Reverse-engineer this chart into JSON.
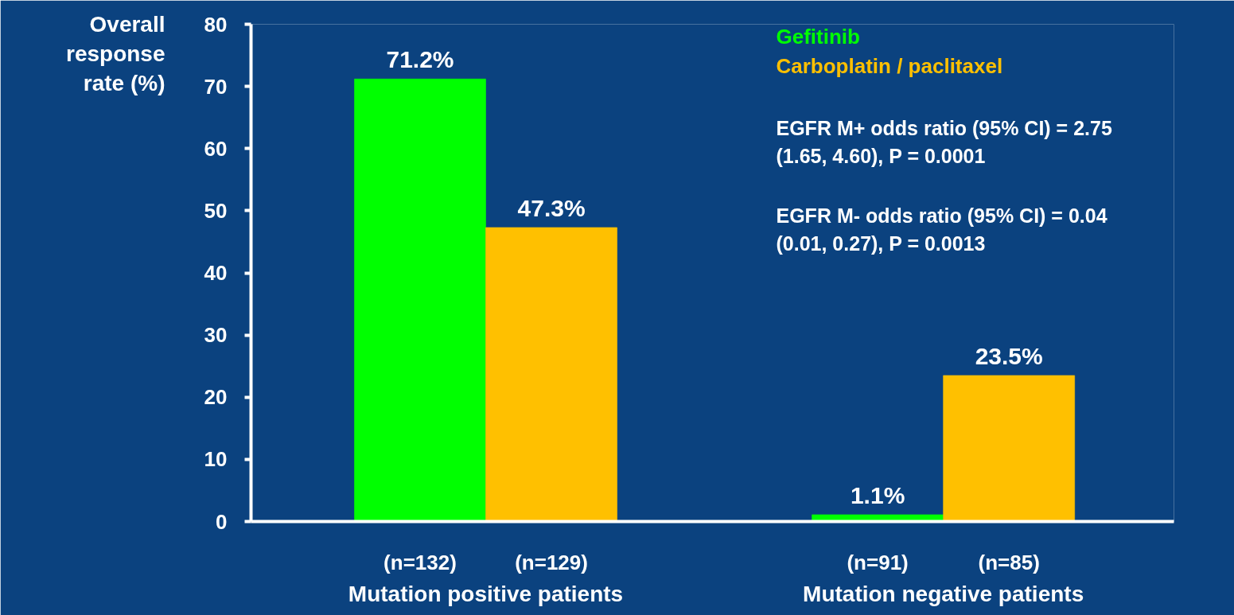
{
  "chart_data": {
    "type": "bar",
    "ylabel": "Overall response rate (%)",
    "categories": [
      "Mutation positive patients",
      "Mutation negative patients"
    ],
    "series": [
      {
        "name": "Gefitinib",
        "color": "#00ff00",
        "values": [
          71.2,
          1.1
        ],
        "value_labels": [
          "71.2%",
          "1.1%"
        ]
      },
      {
        "name": "Carboplatin / paclitaxel",
        "color": "#ffc000",
        "values": [
          47.3,
          23.5
        ],
        "value_labels": [
          "47.3%",
          "23.5%"
        ]
      }
    ],
    "ylim": [
      0,
      80
    ],
    "yticks": [
      0,
      10,
      20,
      30,
      40,
      50,
      60,
      70,
      80
    ],
    "grid": false,
    "legend": "top right",
    "annotations": [
      "(n=132)",
      "(n=129)",
      "(n=91)",
      "(n=85)",
      "EGFR M+ odds ratio (95% CI) = 2.75",
      "(1.65, 4.60), P = 0.0001",
      "EGFR M- odds ratio (95% CI) = 0.04",
      "(0.01, 0.27), P = 0.0013"
    ]
  }
}
